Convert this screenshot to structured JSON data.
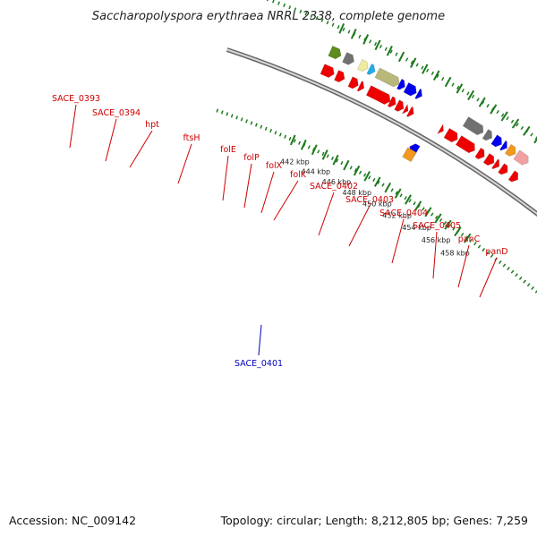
{
  "title": "Saccharopolyspora erythraea NRRL 2338, complete genome",
  "footer": {
    "accession": "Accession: NC_009142",
    "topology": "Topology: circular; Length: 8,212,805 bp; Genes: 7,259"
  },
  "scale_ticks": [
    "442 kbp",
    "444 kbp",
    "446 kbp",
    "448 kbp",
    "450 kbp",
    "452 kbp",
    "454 kbp",
    "456 kbp",
    "458 kbp"
  ],
  "colors": {
    "backbone": "#8c8c8c",
    "tick": "#1e7a1e",
    "label_red": "#cc0000",
    "label_blue": "#0000bb",
    "red": "#ee0000",
    "blue": "#0000ee",
    "gray": "#707070",
    "olive": "#5e8a1e",
    "khaki": "#b9b77a",
    "paleyellow": "#f0eaa0",
    "cyan": "#1eaee8",
    "orange": "#f39a1e",
    "pink": "#f0a0a0"
  },
  "gene_labels": [
    {
      "name": "SACE_0393",
      "color": "red"
    },
    {
      "name": "SACE_0394",
      "color": "red"
    },
    {
      "name": "hpt",
      "color": "red"
    },
    {
      "name": "ftsH",
      "color": "red"
    },
    {
      "name": "folE",
      "color": "red"
    },
    {
      "name": "folP",
      "color": "red"
    },
    {
      "name": "folX",
      "color": "red"
    },
    {
      "name": "folK",
      "color": "red"
    },
    {
      "name": "SACE_0402",
      "color": "red"
    },
    {
      "name": "SACE_0403",
      "color": "red"
    },
    {
      "name": "SACE_0404",
      "color": "red"
    },
    {
      "name": "SACE_0405",
      "color": "red"
    },
    {
      "name": "panC",
      "color": "red"
    },
    {
      "name": "panD",
      "color": "red"
    },
    {
      "name": "SACE_0401",
      "color": "blue"
    }
  ]
}
